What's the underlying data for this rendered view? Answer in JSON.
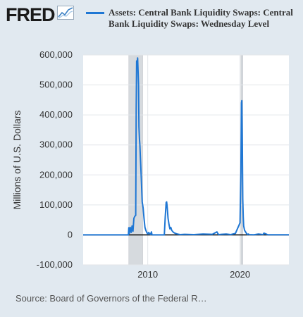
{
  "brand": {
    "logo_text": "FRED"
  },
  "chart_data": {
    "type": "line",
    "legend": "Assets: Central Bank Liquidity Swaps: Central Bank Liquidity Swaps: Wednesday Level",
    "ylabel": "Millions of U.S. Dollars",
    "ylim": [
      -100000,
      600000
    ],
    "xlim": [
      2003.0,
      2025.3
    ],
    "y_ticks": [
      {
        "value": 600000,
        "label": "600,000"
      },
      {
        "value": 500000,
        "label": "500,000"
      },
      {
        "value": 400000,
        "label": "400,000"
      },
      {
        "value": 300000,
        "label": "300,000"
      },
      {
        "value": 200000,
        "label": "200,000"
      },
      {
        "value": 100000,
        "label": "100,000"
      },
      {
        "value": 0,
        "label": "0"
      },
      {
        "value": -100000,
        "label": "-100,000"
      }
    ],
    "x_ticks": [
      {
        "value": 2010,
        "label": "2010"
      },
      {
        "value": 2020,
        "label": "2020"
      }
    ],
    "recessions": [
      {
        "start": 2007.95,
        "end": 2009.45
      },
      {
        "start": 2020.1,
        "end": 2020.3
      }
    ],
    "grid": true,
    "series": [
      {
        "color": "#1f77d4",
        "x": [
          2003.0,
          2007.9,
          2007.95,
          2008.0,
          2008.1,
          2008.2,
          2008.3,
          2008.4,
          2008.5,
          2008.6,
          2008.7,
          2008.75,
          2008.8,
          2008.85,
          2008.9,
          2008.95,
          2009.0,
          2009.05,
          2009.1,
          2009.15,
          2009.2,
          2009.3,
          2009.4,
          2009.5,
          2009.6,
          2009.7,
          2009.8,
          2009.9,
          2010.0,
          2010.1,
          2010.3,
          2010.4,
          2010.45,
          2010.5,
          2010.6,
          2011.0,
          2011.8,
          2011.9,
          2012.0,
          2012.05,
          2012.1,
          2012.2,
          2012.3,
          2012.4,
          2012.5,
          2012.6,
          2012.8,
          2013.0,
          2013.2,
          2013.5,
          2014.0,
          2015.0,
          2016.0,
          2017.0,
          2017.5,
          2017.6,
          2017.7,
          2018.0,
          2018.5,
          2019.0,
          2019.5,
          2020.0,
          2020.1,
          2020.15,
          2020.2,
          2020.25,
          2020.3,
          2020.35,
          2020.4,
          2020.5,
          2020.6,
          2020.7,
          2020.8,
          2020.9,
          2021.0,
          2021.5,
          2022.0,
          2022.5,
          2022.6,
          2023.0,
          2024.0,
          2025.3
        ],
        "y": [
          0,
          0,
          24000,
          5000,
          25000,
          8000,
          30000,
          12000,
          55000,
          62000,
          65000,
          420000,
          580000,
          575000,
          590000,
          550000,
          500000,
          360000,
          320000,
          300000,
          260000,
          190000,
          110000,
          90000,
          55000,
          25000,
          15000,
          8000,
          3000,
          8000,
          1000,
          10000,
          2000,
          0,
          0,
          0,
          0,
          60000,
          108000,
          110000,
          95000,
          55000,
          35000,
          20000,
          25000,
          15000,
          8000,
          5000,
          3000,
          1000,
          2000,
          1000,
          3000,
          2000,
          10000,
          4000,
          1000,
          2000,
          3000,
          1000,
          5000,
          40000,
          210000,
          440000,
          448000,
          300000,
          120000,
          60000,
          30000,
          15000,
          10000,
          5000,
          1000,
          3000,
          1000,
          500,
          3000,
          1000,
          6000,
          500,
          500,
          500
        ]
      }
    ]
  },
  "footer": {
    "source": "Source: Board of Governors of the Federal R…"
  }
}
